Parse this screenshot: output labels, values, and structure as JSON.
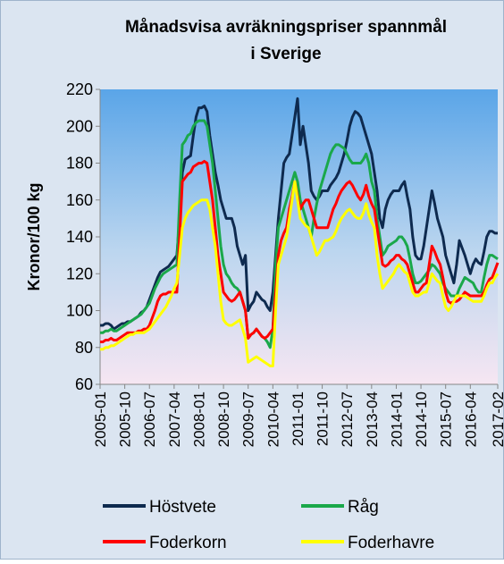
{
  "chart_data": {
    "type": "line",
    "title": [
      "Månadsvisa avräkningspriser spannmål",
      "i Sverige"
    ],
    "y_label": "Kronor/100 kg",
    "categories": [
      "2005-01",
      null,
      null,
      null,
      null,
      null,
      null,
      null,
      null,
      "2005-10",
      null,
      null,
      null,
      null,
      null,
      null,
      null,
      null,
      "2006-07",
      null,
      null,
      null,
      null,
      null,
      null,
      null,
      null,
      "2007-04",
      null,
      null,
      null,
      null,
      null,
      null,
      null,
      null,
      "2008-01",
      null,
      null,
      null,
      null,
      null,
      null,
      null,
      null,
      "2008-10",
      null,
      null,
      null,
      null,
      null,
      null,
      null,
      null,
      "2009-07",
      null,
      null,
      null,
      null,
      null,
      null,
      null,
      null,
      "2010-04",
      null,
      null,
      null,
      null,
      null,
      null,
      null,
      null,
      "2011-01",
      null,
      null,
      null,
      null,
      null,
      null,
      null,
      null,
      "2011-10",
      null,
      null,
      null,
      null,
      null,
      null,
      null,
      null,
      "2012-07",
      null,
      null,
      null,
      null,
      null,
      null,
      null,
      null,
      "2013-04",
      null,
      null,
      null,
      null,
      null,
      null,
      null,
      null,
      "2014-01",
      null,
      null,
      null,
      null,
      null,
      null,
      null,
      null,
      "2014-10",
      null,
      null,
      null,
      null,
      null,
      null,
      null,
      null,
      "2015-07",
      null,
      null,
      null,
      null,
      null,
      null,
      null,
      null,
      "2016-04",
      null,
      null,
      null,
      null,
      null,
      null,
      null,
      null,
      null,
      "2017-02"
    ],
    "series": [
      {
        "name": "Höstvete",
        "color": "#0e2a4f",
        "values": [
          92,
          92,
          93,
          93,
          92,
          90,
          91,
          92,
          93,
          93,
          94,
          94,
          95,
          96,
          97,
          99,
          100,
          102,
          106,
          110,
          114,
          118,
          121,
          122,
          123,
          124,
          126,
          128,
          130,
          150,
          175,
          182,
          183,
          184,
          195,
          205,
          210,
          210,
          211,
          208,
          195,
          185,
          175,
          168,
          160,
          155,
          150,
          150,
          150,
          145,
          135,
          130,
          125,
          130,
          100,
          103,
          105,
          110,
          108,
          106,
          105,
          102,
          100,
          110,
          130,
          150,
          165,
          180,
          183,
          185,
          195,
          205,
          215,
          190,
          200,
          190,
          180,
          165,
          162,
          160,
          162,
          165,
          165,
          165,
          168,
          170,
          172,
          175,
          180,
          185,
          192,
          200,
          205,
          208,
          207,
          205,
          200,
          195,
          190,
          185,
          175,
          165,
          150,
          145,
          155,
          160,
          163,
          165,
          165,
          165,
          168,
          170,
          162,
          155,
          140,
          130,
          128,
          128,
          135,
          145,
          155,
          165,
          158,
          150,
          145,
          140,
          130,
          125,
          120,
          115,
          125,
          138,
          134,
          130,
          125,
          120,
          125,
          128,
          126,
          125,
          132,
          140,
          143,
          143,
          142,
          142
        ]
      },
      {
        "name": "Råg",
        "color": "#1aa84a",
        "values": [
          88,
          88,
          89,
          89,
          90,
          89,
          89,
          90,
          91,
          92,
          93,
          94,
          95,
          96,
          97,
          98,
          100,
          102,
          104,
          108,
          112,
          115,
          118,
          120,
          121,
          122,
          123,
          124,
          125,
          160,
          190,
          192,
          195,
          196,
          200,
          202,
          203,
          203,
          203,
          200,
          190,
          180,
          165,
          150,
          135,
          125,
          120,
          118,
          115,
          113,
          112,
          110,
          105,
          100,
          85,
          87,
          88,
          90,
          88,
          86,
          85,
          83,
          80,
          90,
          125,
          145,
          150,
          155,
          160,
          165,
          170,
          175,
          170,
          160,
          155,
          150,
          145,
          140,
          150,
          158,
          165,
          170,
          175,
          180,
          185,
          188,
          190,
          190,
          189,
          188,
          185,
          182,
          180,
          180,
          180,
          180,
          182,
          185,
          180,
          170,
          165,
          150,
          140,
          130,
          132,
          135,
          136,
          137,
          138,
          140,
          140,
          138,
          135,
          128,
          120,
          115,
          115,
          116,
          118,
          120,
          122,
          125,
          124,
          122,
          120,
          115,
          112,
          110,
          108,
          108,
          108,
          112,
          115,
          118,
          117,
          116,
          115,
          112,
          110,
          110,
          118,
          125,
          130,
          130,
          129,
          128
        ]
      },
      {
        "name": "Foderkorn",
        "color": "#ff0000",
        "values": [
          83,
          83,
          84,
          84,
          85,
          84,
          84,
          85,
          86,
          87,
          88,
          88,
          88,
          88,
          89,
          89,
          90,
          90,
          92,
          96,
          100,
          105,
          108,
          109,
          109,
          110,
          110,
          110,
          110,
          140,
          170,
          172,
          174,
          175,
          178,
          179,
          180,
          180,
          181,
          180,
          170,
          160,
          145,
          130,
          120,
          110,
          108,
          106,
          105,
          106,
          108,
          110,
          105,
          100,
          85,
          87,
          88,
          90,
          88,
          86,
          85,
          86,
          88,
          90,
          110,
          130,
          138,
          142,
          145,
          155,
          162,
          170,
          162,
          155,
          158,
          160,
          160,
          155,
          150,
          145,
          145,
          145,
          145,
          145,
          150,
          155,
          158,
          162,
          165,
          167,
          169,
          170,
          168,
          165,
          162,
          160,
          163,
          168,
          162,
          158,
          155,
          145,
          135,
          125,
          124,
          125,
          127,
          128,
          130,
          130,
          128,
          127,
          125,
          120,
          115,
          110,
          110,
          112,
          114,
          115,
          125,
          135,
          132,
          128,
          125,
          118,
          110,
          105,
          104,
          105,
          105,
          106,
          108,
          110,
          109,
          108,
          108,
          108,
          108,
          108,
          110,
          114,
          117,
          118,
          122,
          126
        ]
      },
      {
        "name": "Foderhavre",
        "color": "#ffff00",
        "values": [
          79,
          79,
          80,
          80,
          81,
          81,
          82,
          83,
          84,
          85,
          86,
          87,
          87,
          88,
          88,
          88,
          88,
          89,
          90,
          92,
          94,
          96,
          98,
          100,
          102,
          105,
          108,
          112,
          115,
          130,
          145,
          150,
          153,
          155,
          157,
          158,
          159,
          160,
          160,
          160,
          155,
          145,
          135,
          120,
          105,
          95,
          93,
          92,
          92,
          93,
          94,
          95,
          90,
          85,
          72,
          73,
          74,
          75,
          74,
          73,
          72,
          71,
          70,
          70,
          100,
          125,
          130,
          135,
          140,
          150,
          160,
          170,
          160,
          150,
          148,
          146,
          145,
          140,
          135,
          130,
          132,
          135,
          138,
          138,
          139,
          140,
          143,
          147,
          150,
          152,
          154,
          155,
          153,
          151,
          150,
          150,
          153,
          158,
          152,
          148,
          145,
          130,
          120,
          112,
          114,
          116,
          118,
          120,
          123,
          125,
          123,
          121,
          120,
          115,
          110,
          108,
          108,
          109,
          110,
          110,
          115,
          120,
          118,
          116,
          115,
          108,
          102,
          100,
          102,
          105,
          108,
          108,
          108,
          108,
          107,
          106,
          105,
          105,
          105,
          105,
          108,
          112,
          115,
          115,
          118,
          120
        ]
      }
    ],
    "ylim": [
      60,
      220
    ],
    "yticks": [
      60,
      80,
      100,
      120,
      140,
      160,
      180,
      200,
      220
    ],
    "grid": false
  }
}
